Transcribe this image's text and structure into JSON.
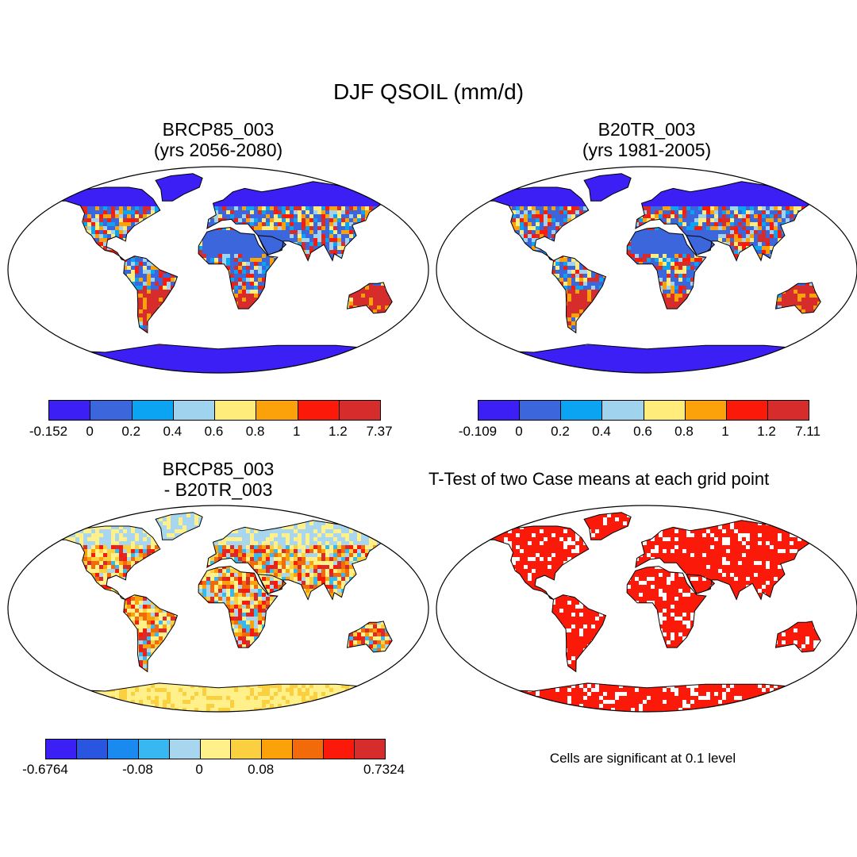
{
  "figure": {
    "title": "DJF QSOIL (mm/d)",
    "footnote": "Cells are significant at 0.1 level"
  },
  "colors": {
    "land_base": "#3b66dc",
    "land_north": "#3b1ff5",
    "frame": "#000000"
  },
  "panels": [
    {
      "title_line1": "BRCP85_003",
      "title_line2": "(yrs 2056-2080)",
      "colorbar": {
        "colors": [
          "#3b1ff5",
          "#3b66dc",
          "#0aa4f2",
          "#9fd3ee",
          "#ffec7a",
          "#fba20a",
          "#fb1a0a",
          "#d62c2c"
        ],
        "labels": [
          "-0.152",
          "0",
          "0.2",
          "0.4",
          "0.6",
          "0.8",
          "1",
          "1.2",
          "7.37"
        ]
      }
    },
    {
      "title_line1": "B20TR_003",
      "title_line2": "(yrs 1981-2005)",
      "colorbar": {
        "colors": [
          "#3b1ff5",
          "#3b66dc",
          "#0aa4f2",
          "#9fd3ee",
          "#ffec7a",
          "#fba20a",
          "#fb1a0a",
          "#d62c2c"
        ],
        "labels": [
          "-0.109",
          "0",
          "0.2",
          "0.4",
          "0.6",
          "0.8",
          "1",
          "1.2",
          "7.11"
        ]
      }
    },
    {
      "title_line1": "BRCP85_003",
      "title_line2": "- B20TR_003",
      "colorbar": {
        "colors": [
          "#3b1ff5",
          "#2a55e0",
          "#1a8af0",
          "#38b8f0",
          "#a8d6ee",
          "#fff08a",
          "#fbd040",
          "#fba20a",
          "#f26a0a",
          "#fb1a0a",
          "#d62c2c"
        ],
        "labels": [
          "-0.6764",
          "-0.08",
          "0",
          "0.08",
          "0.7324"
        ]
      }
    },
    {
      "title": "T-Test of two Case means at each grid point"
    }
  ]
}
